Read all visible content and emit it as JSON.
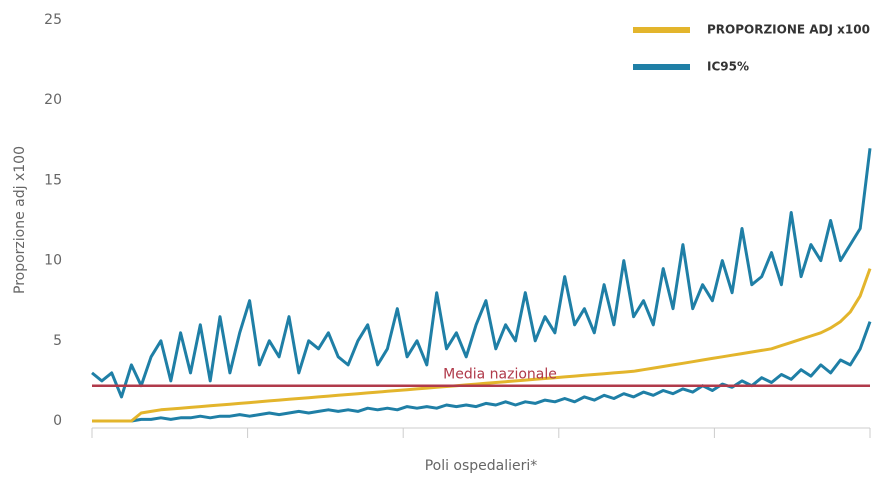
{
  "chart_data": {
    "type": "line",
    "xlabel": "Poli ospedalieri*",
    "ylabel": "Proporzione adj x100",
    "ylim": [
      0,
      25
    ],
    "yticks": [
      0,
      5,
      10,
      15,
      20,
      25
    ],
    "grid": false,
    "legend": "top-right",
    "categories": [
      null,
      null,
      null,
      null,
      null,
      null,
      null,
      null,
      null,
      null,
      null,
      null,
      null,
      null,
      null,
      null,
      null,
      null,
      null,
      null,
      null,
      null,
      null,
      null,
      null,
      null,
      null,
      null,
      null,
      null,
      null,
      null,
      null,
      null,
      null,
      null,
      null,
      null,
      null,
      null,
      null,
      null,
      null,
      null,
      null,
      null,
      null,
      null,
      null,
      null,
      null,
      null,
      null,
      null,
      null,
      null,
      null,
      null,
      null,
      null,
      null,
      null,
      null,
      null,
      null,
      null,
      null,
      null,
      null,
      null,
      null,
      null,
      null,
      null,
      null,
      null,
      null,
      null,
      null,
      null
    ],
    "series": [
      {
        "name": "PROPORZIONE ADJ x100",
        "color": "#e3b52c",
        "values": [
          0,
          0,
          0,
          0,
          0,
          0.5,
          0.6,
          0.7,
          0.75,
          0.8,
          0.85,
          0.9,
          0.95,
          1.0,
          1.05,
          1.1,
          1.15,
          1.2,
          1.25,
          1.3,
          1.35,
          1.4,
          1.45,
          1.5,
          1.55,
          1.6,
          1.65,
          1.7,
          1.75,
          1.8,
          1.85,
          1.9,
          1.95,
          2.0,
          2.05,
          2.1,
          2.15,
          2.2,
          2.25,
          2.3,
          2.35,
          2.4,
          2.45,
          2.5,
          2.55,
          2.6,
          2.65,
          2.7,
          2.75,
          2.8,
          2.85,
          2.9,
          2.95,
          3.0,
          3.05,
          3.1,
          3.2,
          3.3,
          3.4,
          3.5,
          3.6,
          3.7,
          3.8,
          3.9,
          4.0,
          4.1,
          4.2,
          4.3,
          4.4,
          4.5,
          4.7,
          4.9,
          5.1,
          5.3,
          5.5,
          5.8,
          6.2,
          6.8,
          7.8,
          9.5
        ]
      },
      {
        "name": "IC95%",
        "color": "#1f7fa6",
        "values": [
          3,
          2.5,
          3,
          1.5,
          3.5,
          2.2,
          4,
          5,
          2.5,
          5.5,
          3,
          6,
          2.5,
          6.5,
          3,
          5.5,
          7.5,
          3.5,
          5,
          4,
          6.5,
          3,
          5,
          4.5,
          5.5,
          4,
          3.5,
          5,
          6,
          3.5,
          4.5,
          7,
          4,
          5,
          3.5,
          8,
          4.5,
          5.5,
          4,
          6,
          7.5,
          4.5,
          6,
          5,
          8,
          5,
          6.5,
          5.5,
          9,
          6,
          7,
          5.5,
          8.5,
          6,
          10,
          6.5,
          7.5,
          6,
          9.5,
          7,
          11,
          7,
          8.5,
          7.5,
          10,
          8,
          12,
          8.5,
          9,
          10.5,
          8.5,
          13,
          9,
          11,
          10,
          12.5,
          10,
          11,
          12,
          17
        ],
        "lower": [
          0,
          0,
          0,
          0,
          0,
          0.1,
          0.1,
          0.2,
          0.1,
          0.2,
          0.2,
          0.3,
          0.2,
          0.3,
          0.3,
          0.4,
          0.3,
          0.4,
          0.5,
          0.4,
          0.5,
          0.6,
          0.5,
          0.6,
          0.7,
          0.6,
          0.7,
          0.6,
          0.8,
          0.7,
          0.8,
          0.7,
          0.9,
          0.8,
          0.9,
          0.8,
          1.0,
          0.9,
          1.0,
          0.9,
          1.1,
          1.0,
          1.2,
          1.0,
          1.2,
          1.1,
          1.3,
          1.2,
          1.4,
          1.2,
          1.5,
          1.3,
          1.6,
          1.4,
          1.7,
          1.5,
          1.8,
          1.6,
          1.9,
          1.7,
          2.0,
          1.8,
          2.2,
          1.9,
          2.3,
          2.1,
          2.5,
          2.2,
          2.7,
          2.4,
          2.9,
          2.6,
          3.2,
          2.8,
          3.5,
          3.0,
          3.8,
          3.5,
          4.5,
          6.2
        ]
      }
    ],
    "reference_line": {
      "label": "Media nazionale",
      "value": 2.2,
      "color": "#b03a4a"
    }
  }
}
